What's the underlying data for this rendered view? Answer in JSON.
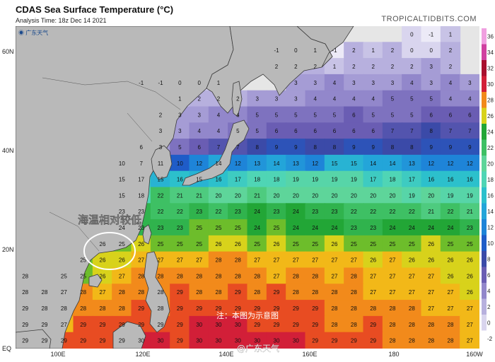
{
  "header": {
    "title": "CDAS Sea Surface Temperature (°C)",
    "analysis_time": "Analysis Time: 18z Dec 14 2021",
    "site": "TROPICALTIDBITS.COM"
  },
  "annotations": {
    "region_label": "海温相对较低",
    "note": "注：本图为示意图",
    "watermark": "@广东天气",
    "corner_logo": "广东天气"
  },
  "axes": {
    "lon_labels": [
      "100E",
      "120E",
      "140E",
      "160E",
      "180",
      "160W"
    ],
    "lat_labels": [
      "EQ",
      "20N",
      "40N",
      "60N"
    ]
  },
  "colorbar": {
    "labels": [
      "36",
      "34",
      "32",
      "30",
      "28",
      "26",
      "24",
      "22",
      "20",
      "18",
      "16",
      "14",
      "12",
      "10",
      "8",
      "6",
      "4",
      "2",
      "0",
      "-2"
    ]
  },
  "colors": {
    "land": "#b9b9b9",
    "coast": "#333333",
    "ring": "#ffffff"
  },
  "sst_grid": [
    {
      "lat": "62",
      "vals": [
        null,
        null,
        null,
        null,
        null,
        null,
        null,
        null,
        null,
        null,
        null,
        null,
        null,
        null,
        null,
        null,
        null,
        null,
        null,
        null,
        0,
        -1,
        1,
        null
      ]
    },
    {
      "lat": "57",
      "vals": [
        null,
        null,
        null,
        null,
        null,
        null,
        null,
        null,
        null,
        null,
        null,
        null,
        null,
        -1,
        0,
        1,
        -1,
        2,
        1,
        2,
        0,
        0,
        2,
        null
      ]
    },
    {
      "lat": "52",
      "vals": [
        null,
        null,
        null,
        null,
        null,
        null,
        null,
        null,
        null,
        null,
        null,
        null,
        null,
        2,
        2,
        2,
        1,
        2,
        2,
        2,
        2,
        3,
        2,
        null
      ]
    },
    {
      "lat": "48",
      "vals": [
        null,
        null,
        null,
        null,
        null,
        null,
        -1,
        -1,
        0,
        0,
        1,
        null,
        null,
        null,
        3,
        3,
        4,
        3,
        3,
        3,
        4,
        3,
        4,
        3
      ]
    },
    {
      "lat": "45",
      "vals": [
        null,
        null,
        null,
        null,
        null,
        null,
        null,
        null,
        1,
        2,
        2,
        2,
        3,
        3,
        3,
        4,
        4,
        4,
        4,
        5,
        5,
        5,
        4,
        4
      ]
    },
    {
      "lat": "42",
      "vals": [
        null,
        null,
        null,
        null,
        null,
        null,
        null,
        2,
        3,
        3,
        4,
        4,
        5,
        5,
        5,
        5,
        5,
        6,
        5,
        5,
        5,
        6,
        6,
        6
      ]
    },
    {
      "lat": "39",
      "vals": [
        null,
        null,
        null,
        null,
        null,
        null,
        null,
        3,
        3,
        4,
        4,
        5,
        5,
        6,
        6,
        6,
        6,
        6,
        6,
        7,
        7,
        8,
        7,
        7
      ]
    },
    {
      "lat": "36",
      "vals": [
        null,
        null,
        null,
        null,
        null,
        null,
        6,
        3,
        5,
        6,
        7,
        7,
        8,
        9,
        9,
        8,
        8,
        9,
        9,
        8,
        8,
        9,
        9,
        9
      ]
    },
    {
      "lat": "33",
      "vals": [
        null,
        null,
        null,
        null,
        null,
        10,
        7,
        11,
        10,
        12,
        14,
        12,
        13,
        14,
        13,
        12,
        15,
        15,
        14,
        14,
        13,
        12,
        12,
        12
      ]
    },
    {
      "lat": "30",
      "vals": [
        null,
        null,
        null,
        null,
        null,
        15,
        17,
        15,
        16,
        15,
        16,
        17,
        18,
        18,
        19,
        19,
        19,
        19,
        17,
        18,
        17,
        16,
        16,
        16
      ]
    },
    {
      "lat": "27",
      "vals": [
        null,
        null,
        null,
        null,
        null,
        15,
        18,
        22,
        21,
        21,
        20,
        20,
        21,
        20,
        20,
        20,
        20,
        20,
        20,
        20,
        19,
        20,
        19,
        19
      ]
    },
    {
      "lat": "24",
      "vals": [
        null,
        null,
        null,
        null,
        null,
        23,
        23,
        22,
        22,
        23,
        22,
        23,
        24,
        23,
        24,
        23,
        23,
        22,
        22,
        22,
        22,
        21,
        22,
        21
      ]
    },
    {
      "lat": "21",
      "vals": [
        null,
        null,
        null,
        null,
        null,
        24,
        23,
        23,
        23,
        25,
        25,
        25,
        24,
        25,
        24,
        24,
        24,
        23,
        23,
        24,
        24,
        24,
        24,
        23
      ]
    },
    {
      "lat": "18",
      "vals": [
        null,
        null,
        null,
        null,
        26,
        25,
        26,
        25,
        25,
        25,
        26,
        26,
        25,
        26,
        25,
        25,
        26,
        25,
        25,
        25,
        25,
        26,
        25,
        25
      ]
    },
    {
      "lat": "15",
      "vals": [
        null,
        null,
        null,
        25,
        26,
        26,
        27,
        27,
        27,
        27,
        28,
        28,
        27,
        27,
        27,
        27,
        27,
        27,
        26,
        27,
        26,
        26,
        26,
        26
      ]
    },
    {
      "lat": "12",
      "vals": [
        28,
        null,
        25,
        25,
        26,
        27,
        28,
        28,
        28,
        28,
        28,
        28,
        28,
        27,
        28,
        28,
        27,
        28,
        27,
        27,
        27,
        27,
        26,
        26
      ]
    },
    {
      "lat": "9",
      "vals": [
        28,
        28,
        27,
        28,
        27,
        28,
        28,
        28,
        29,
        28,
        28,
        29,
        28,
        29,
        28,
        28,
        28,
        28,
        27,
        27,
        27,
        27,
        27,
        26
      ]
    },
    {
      "lat": "6",
      "vals": [
        29,
        28,
        28,
        28,
        28,
        28,
        29,
        28,
        29,
        29,
        29,
        29,
        29,
        29,
        29,
        29,
        28,
        28,
        28,
        28,
        28,
        27,
        27,
        27
      ]
    },
    {
      "lat": "3",
      "vals": [
        29,
        29,
        27,
        29,
        29,
        29,
        29,
        29,
        29,
        30,
        30,
        30,
        29,
        29,
        29,
        29,
        28,
        28,
        29,
        28,
        28,
        28,
        28,
        27
      ]
    },
    {
      "lat": "1",
      "vals": [
        29,
        29,
        29,
        29,
        29,
        29,
        30,
        30,
        29,
        30,
        30,
        30,
        30,
        30,
        30,
        29,
        29,
        29,
        29,
        28,
        28,
        28,
        28,
        27
      ]
    }
  ]
}
